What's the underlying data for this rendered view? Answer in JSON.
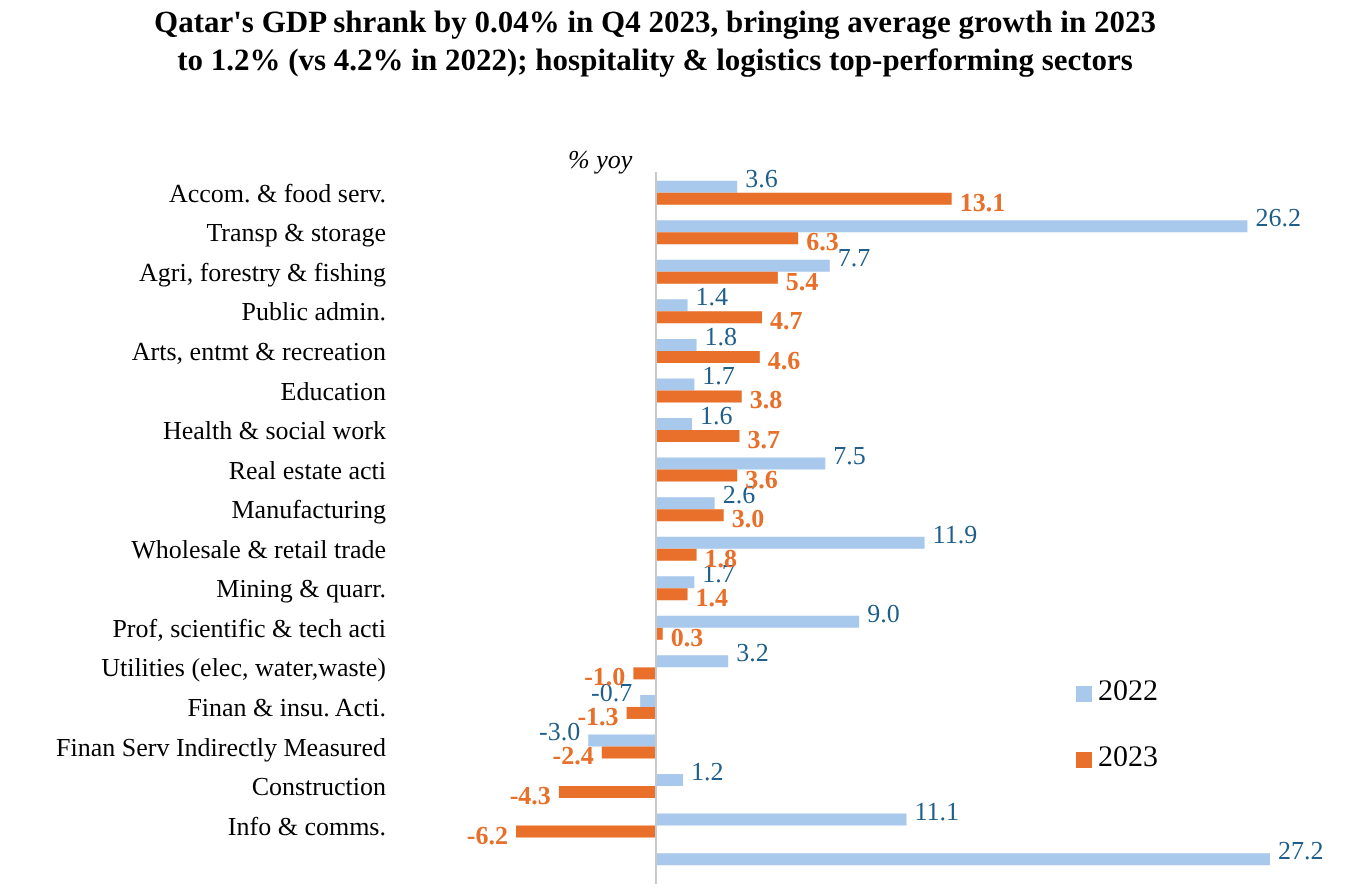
{
  "chart_data": {
    "type": "bar",
    "orientation": "horizontal",
    "title": "Qatar's GDP shrank by 0.04% in Q4 2023, bringing average growth in 2023 to 1.2% (vs 4.2% in 2022); hospitality & logistics top-performing sectors",
    "xlabel": "% yoy",
    "categories": [
      "Accom. & food serv.",
      "Transp & storage",
      "Agri, forestry & fishing",
      "Public admin.",
      "Arts, entmt & recreation",
      "Education ",
      "Health & social work",
      "Real estate acti",
      "Manufacturing",
      "Wholesale & retail trade",
      "Mining & quarr.",
      "Prof, scientific & tech acti",
      "Utilities (elec, water,waste)",
      "Finan & insu. Acti.",
      "Finan Serv Indirectly Measured",
      "Construction",
      "Info & comms.",
      null
    ],
    "series": [
      {
        "name": "2022",
        "color": "#a9c9ec",
        "values": [
          3.6,
          26.2,
          7.7,
          1.4,
          1.8,
          1.7,
          1.6,
          7.5,
          2.6,
          11.9,
          1.7,
          9.0,
          3.2,
          -0.7,
          -3.0,
          1.2,
          11.1,
          27.2
        ],
        "value_labels": [
          "3.6",
          "26.2",
          "7.7",
          "1.4",
          "1.8",
          "1.7",
          "1.6",
          "7.5",
          "2.6",
          "11.9",
          "1.7",
          "9.0",
          "3.2",
          "-0.7",
          "-3.0",
          "1.2",
          "11.1",
          "27.2"
        ]
      },
      {
        "name": "2023",
        "color": "#e8702a",
        "values": [
          13.1,
          6.3,
          5.4,
          4.7,
          4.6,
          3.8,
          3.7,
          3.6,
          3.0,
          1.8,
          1.4,
          0.3,
          -1.0,
          -1.3,
          -2.4,
          -4.3,
          -6.2,
          null
        ],
        "value_labels": [
          "13.1",
          "6.3",
          "5.4",
          "4.7",
          "4.6",
          "3.8",
          "3.7",
          "3.6",
          "3.0",
          "1.8",
          "1.4",
          "0.3",
          "-1.0",
          "-1.3",
          "-2.4",
          "-4.3",
          "-6.2",
          null
        ]
      }
    ],
    "legend": "right"
  }
}
